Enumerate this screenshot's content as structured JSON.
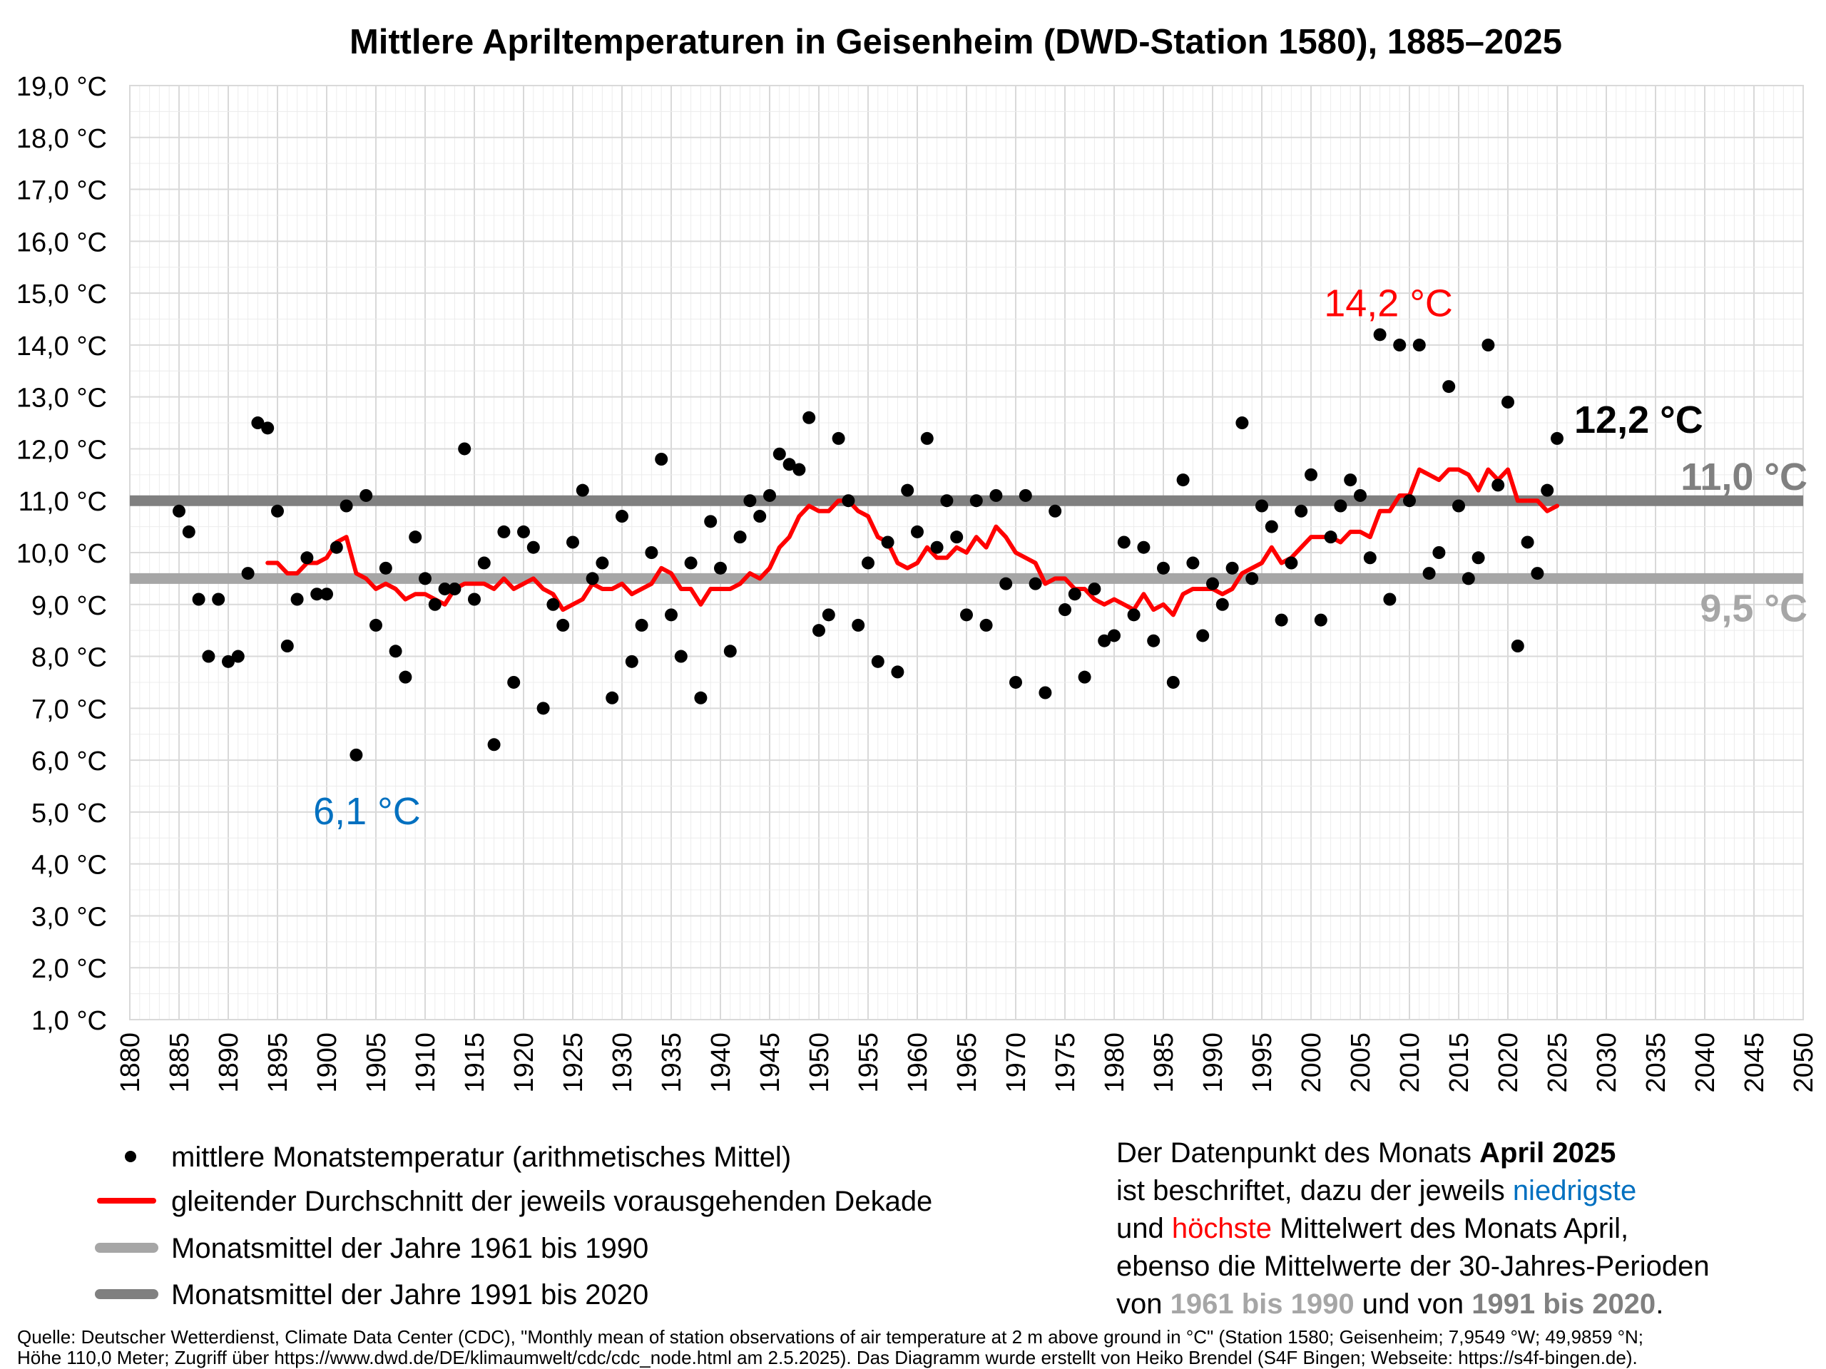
{
  "chart_data": {
    "type": "scatter",
    "title": "Mittlere Apriltemperaturen in Geisenheim (DWD-Station 1580), 1885–2025",
    "xlim": [
      1880,
      2050
    ],
    "ylim": [
      1,
      19
    ],
    "x_ticks": [
      "1880",
      "1885",
      "1890",
      "1895",
      "1900",
      "1905",
      "1910",
      "1915",
      "1920",
      "1925",
      "1930",
      "1935",
      "1940",
      "1945",
      "1950",
      "1955",
      "1960",
      "1965",
      "1970",
      "1975",
      "1980",
      "1985",
      "1990",
      "1995",
      "2000",
      "2005",
      "2010",
      "2015",
      "2020",
      "2025",
      "2030",
      "2035",
      "2040",
      "2045",
      "2050"
    ],
    "y_ticks": [
      "1,0 °C",
      "2,0 °C",
      "3,0 °C",
      "4,0 °C",
      "5,0 °C",
      "6,0 °C",
      "7,0 °C",
      "8,0 °C",
      "9,0 °C",
      "10,0 °C",
      "11,0 °C",
      "12,0 °C",
      "13,0 °C",
      "14,0 °C",
      "15,0 °C",
      "16,0 °C",
      "17,0 °C",
      "18,0 °C",
      "19,0 °C"
    ],
    "grid": true,
    "series": [
      {
        "name": "mittlere Monatstemperatur (arithmetisches Mittel)",
        "kind": "points",
        "color": "#000000",
        "x": [
          1885,
          1886,
          1887,
          1888,
          1889,
          1890,
          1891,
          1892,
          1893,
          1894,
          1895,
          1896,
          1897,
          1898,
          1899,
          1900,
          1901,
          1902,
          1903,
          1904,
          1905,
          1906,
          1907,
          1908,
          1909,
          1910,
          1911,
          1912,
          1913,
          1914,
          1915,
          1916,
          1917,
          1918,
          1919,
          1920,
          1921,
          1922,
          1923,
          1924,
          1925,
          1926,
          1927,
          1928,
          1929,
          1930,
          1931,
          1932,
          1933,
          1934,
          1935,
          1936,
          1937,
          1938,
          1939,
          1940,
          1941,
          1942,
          1943,
          1944,
          1945,
          1946,
          1947,
          1948,
          1949,
          1950,
          1951,
          1952,
          1953,
          1954,
          1955,
          1956,
          1957,
          1958,
          1959,
          1960,
          1961,
          1962,
          1963,
          1964,
          1965,
          1966,
          1967,
          1968,
          1969,
          1970,
          1971,
          1972,
          1973,
          1974,
          1975,
          1976,
          1977,
          1978,
          1979,
          1980,
          1981,
          1982,
          1983,
          1984,
          1985,
          1986,
          1987,
          1988,
          1989,
          1990,
          1991,
          1992,
          1993,
          1994,
          1995,
          1996,
          1997,
          1998,
          1999,
          2000,
          2001,
          2002,
          2003,
          2004,
          2005,
          2006,
          2007,
          2008,
          2009,
          2010,
          2011,
          2012,
          2013,
          2014,
          2015,
          2016,
          2017,
          2018,
          2019,
          2020,
          2021,
          2022,
          2023,
          2024,
          2025
        ],
        "y": [
          10.8,
          10.4,
          9.1,
          8.0,
          9.1,
          7.9,
          8.0,
          9.6,
          12.5,
          12.4,
          10.8,
          8.2,
          9.1,
          9.9,
          9.2,
          9.2,
          10.1,
          10.9,
          6.1,
          11.1,
          8.6,
          9.7,
          8.1,
          7.6,
          10.3,
          9.5,
          9.0,
          9.3,
          9.3,
          12.0,
          9.1,
          9.8,
          6.3,
          10.4,
          7.5,
          10.4,
          10.1,
          7.0,
          9.0,
          8.6,
          10.2,
          11.2,
          9.5,
          9.8,
          7.2,
          10.7,
          7.9,
          8.6,
          10.0,
          11.8,
          8.8,
          8.0,
          9.8,
          7.2,
          10.6,
          9.7,
          8.1,
          10.3,
          11.0,
          10.7,
          11.1,
          11.9,
          11.7,
          11.6,
          12.6,
          8.5,
          8.8,
          12.2,
          11.0,
          8.6,
          9.8,
          7.9,
          10.2,
          7.7,
          11.2,
          10.4,
          12.2,
          10.1,
          11.0,
          10.3,
          8.8,
          11.0,
          8.6,
          11.1,
          9.4,
          7.5,
          11.1,
          9.4,
          7.3,
          10.8,
          8.9,
          9.2,
          7.6,
          9.3,
          8.3,
          8.4,
          10.2,
          8.8,
          10.1,
          8.3,
          9.7,
          7.5,
          11.4,
          9.8,
          8.4,
          9.4,
          9.0,
          9.7,
          12.5,
          9.5,
          10.9,
          10.5,
          8.7,
          9.8,
          10.8,
          11.5,
          8.7,
          10.3,
          10.9,
          11.4,
          11.1,
          9.9,
          14.2,
          9.1,
          14.0,
          11.0,
          14.0,
          9.6,
          10.0,
          13.2,
          10.9,
          9.5,
          9.9,
          14.0,
          11.3,
          12.9,
          8.2,
          10.2,
          9.6,
          11.2,
          12.2
        ]
      },
      {
        "name": "gleitender Durchschnitt der jeweils vorausgehenden Dekade",
        "kind": "line",
        "color": "#ff0000",
        "x": [
          1894,
          1895,
          1896,
          1897,
          1898,
          1899,
          1900,
          1901,
          1902,
          1903,
          1904,
          1905,
          1906,
          1907,
          1908,
          1909,
          1910,
          1911,
          1912,
          1913,
          1914,
          1915,
          1916,
          1917,
          1918,
          1919,
          1920,
          1921,
          1922,
          1923,
          1924,
          1925,
          1926,
          1927,
          1928,
          1929,
          1930,
          1931,
          1932,
          1933,
          1934,
          1935,
          1936,
          1937,
          1938,
          1939,
          1940,
          1941,
          1942,
          1943,
          1944,
          1945,
          1946,
          1947,
          1948,
          1949,
          1950,
          1951,
          1952,
          1953,
          1954,
          1955,
          1956,
          1957,
          1958,
          1959,
          1960,
          1961,
          1962,
          1963,
          1964,
          1965,
          1966,
          1967,
          1968,
          1969,
          1970,
          1971,
          1972,
          1973,
          1974,
          1975,
          1976,
          1977,
          1978,
          1979,
          1980,
          1981,
          1982,
          1983,
          1984,
          1985,
          1986,
          1987,
          1988,
          1989,
          1990,
          1991,
          1992,
          1993,
          1994,
          1995,
          1996,
          1997,
          1998,
          1999,
          2000,
          2001,
          2002,
          2003,
          2004,
          2005,
          2006,
          2007,
          2008,
          2009,
          2010,
          2011,
          2012,
          2013,
          2014,
          2015,
          2016,
          2017,
          2018,
          2019,
          2020,
          2021,
          2022,
          2023,
          2024,
          2025
        ],
        "y": [
          9.8,
          9.8,
          9.6,
          9.6,
          9.8,
          9.8,
          9.9,
          10.2,
          10.3,
          9.6,
          9.5,
          9.3,
          9.4,
          9.3,
          9.1,
          9.2,
          9.2,
          9.1,
          9.0,
          9.3,
          9.4,
          9.4,
          9.4,
          9.3,
          9.5,
          9.3,
          9.4,
          9.5,
          9.3,
          9.2,
          8.9,
          9.0,
          9.1,
          9.4,
          9.3,
          9.3,
          9.4,
          9.2,
          9.3,
          9.4,
          9.7,
          9.6,
          9.3,
          9.3,
          9.0,
          9.3,
          9.3,
          9.3,
          9.4,
          9.6,
          9.5,
          9.7,
          10.1,
          10.3,
          10.7,
          10.9,
          10.8,
          10.8,
          11.0,
          11.0,
          10.8,
          10.7,
          10.3,
          10.2,
          9.8,
          9.7,
          9.8,
          10.1,
          9.9,
          9.9,
          10.1,
          10.0,
          10.3,
          10.1,
          10.5,
          10.3,
          10.0,
          9.9,
          9.8,
          9.4,
          9.5,
          9.5,
          9.3,
          9.3,
          9.1,
          9.0,
          9.1,
          9.0,
          8.9,
          9.2,
          8.9,
          9.0,
          8.8,
          9.2,
          9.3,
          9.3,
          9.3,
          9.2,
          9.3,
          9.6,
          9.7,
          9.8,
          10.1,
          9.8,
          9.9,
          10.1,
          10.3,
          10.3,
          10.3,
          10.2,
          10.4,
          10.4,
          10.3,
          10.8,
          10.8,
          11.1,
          11.1,
          11.6,
          11.5,
          11.4,
          11.6,
          11.6,
          11.5,
          11.2,
          11.6,
          11.4,
          11.6,
          11.0,
          11.0,
          11.0,
          10.8,
          10.9
        ]
      }
    ],
    "reference_lines": [
      {
        "name": "Monatsmittel der Jahre 1961 bis 1990",
        "value": 9.5,
        "color": "#a6a6a6",
        "label": "9,5 °C"
      },
      {
        "name": "Monatsmittel der Jahre 1991 bis 2020",
        "value": 11.0,
        "color": "#808080",
        "label": "11,0 °C"
      }
    ],
    "annotations": [
      {
        "text": "14,2 °C",
        "x": 2007,
        "y": 14.2,
        "color": "#ff0000",
        "meaning": "höchster Mittelwert"
      },
      {
        "text": "6,1 °C",
        "x": 1903,
        "y": 6.1,
        "color": "#0070c0",
        "meaning": "niedrigster Mittelwert"
      },
      {
        "text": "12,2 °C",
        "x": 2025,
        "y": 12.2,
        "color": "#000000",
        "meaning": "April 2025"
      }
    ],
    "legend_position": "bottom-left"
  },
  "legend": {
    "items": [
      {
        "label": "mittlere Monatstemperatur (arithmetisches Mittel)",
        "icon": "dot",
        "color": "#000000"
      },
      {
        "label": "gleitender Durchschnitt der jeweils vorausgehenden Dekade",
        "icon": "line",
        "color": "#ff0000"
      },
      {
        "label": "Monatsmittel der Jahre 1961 bis 1990",
        "icon": "line",
        "color": "#a6a6a6"
      },
      {
        "label": "Monatsmittel der Jahre 1991 bis 2020",
        "icon": "line",
        "color": "#808080"
      }
    ]
  },
  "info": {
    "line1_a": "Der Datenpunkt des Monats ",
    "line1_b": "April 2025",
    "line2_a": "ist beschriftet, dazu der jeweils ",
    "line2_b": "niedrigste",
    "line3_a": "und ",
    "line3_b": "höchste",
    "line3_c": " Mittelwert des Monats April,",
    "line4": "ebenso die Mittelwerte der 30-Jahres-Perioden",
    "line5_a": "von ",
    "line5_b": "1961 bis 1990",
    "line5_c": " und von ",
    "line5_d": "1991 bis 2020",
    "line5_e": "."
  },
  "source": {
    "line1": "Quelle: Deutscher Wetterdienst, Climate Data Center (CDC), \"Monthly mean of station observations of air temperature at 2 m above ground in °C\" (Station 1580; Geisenheim; 7,9549 °W; 49,9859 °N;",
    "line2": "Höhe 110,0 Meter; Zugriff über https://www.dwd.de/DE/klimaumwelt/cdc/cdc_node.html am 2.5.2025). Das Diagramm wurde erstellt von Heiko Brendel (S4F Bingen; Webseite: https://s4f-bingen.de)."
  },
  "colors": {
    "low": "#0070c0",
    "high": "#ff0000",
    "ref1961": "#a6a6a6",
    "ref1991": "#808080"
  }
}
